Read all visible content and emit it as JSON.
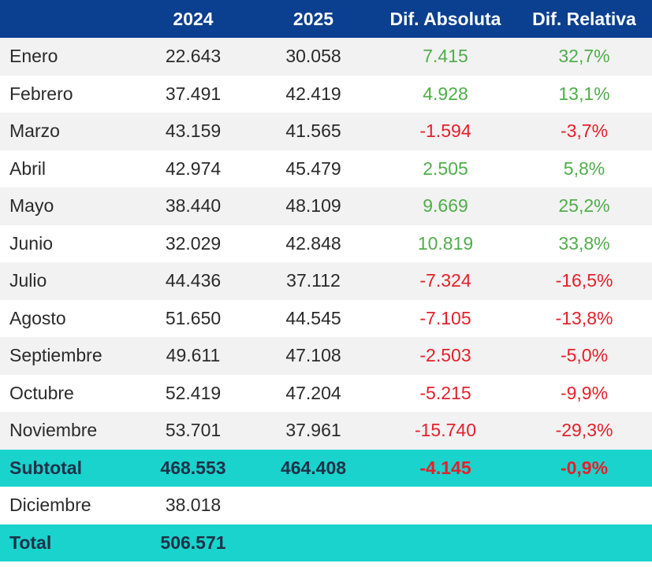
{
  "table": {
    "header": [
      "",
      "2024",
      "2025",
      "Dif. Absoluta",
      "Dif. Relativa"
    ],
    "months": [
      [
        "Enero",
        "22.643",
        "30.058",
        "7.415",
        "32,7%"
      ],
      [
        "Febrero",
        "37.491",
        "42.419",
        "4.928",
        "13,1%"
      ],
      [
        "Marzo",
        "43.159",
        "41.565",
        "-1.594",
        "-3,7%"
      ],
      [
        "Abril",
        "42.974",
        "45.479",
        "2.505",
        "5,8%"
      ],
      [
        "Mayo",
        "38.440",
        "48.109",
        "9.669",
        "25,2%"
      ],
      [
        "Junio",
        "32.029",
        "42.848",
        "10.819",
        "33,8%"
      ],
      [
        "Julio",
        "44.436",
        "37.112",
        "-7.324",
        "-16,5%"
      ],
      [
        "Agosto",
        "51.650",
        "44.545",
        "-7.105",
        "-13,8%"
      ],
      [
        "Septiembre",
        "49.611",
        "47.108",
        "-2.503",
        "-5,0%"
      ],
      [
        "Octubre",
        "52.419",
        "47.204",
        "-5.215",
        "-9,9%"
      ],
      [
        "Noviembre",
        "53.701",
        "37.961",
        "-15.740",
        "-29,3%"
      ]
    ],
    "subtotal": [
      "Subtotal",
      "468.553",
      "464.408",
      "-4.145",
      "-0,9%"
    ],
    "december": [
      "Diciembre",
      "38.018"
    ],
    "total": [
      "Total",
      "506.571"
    ]
  }
}
